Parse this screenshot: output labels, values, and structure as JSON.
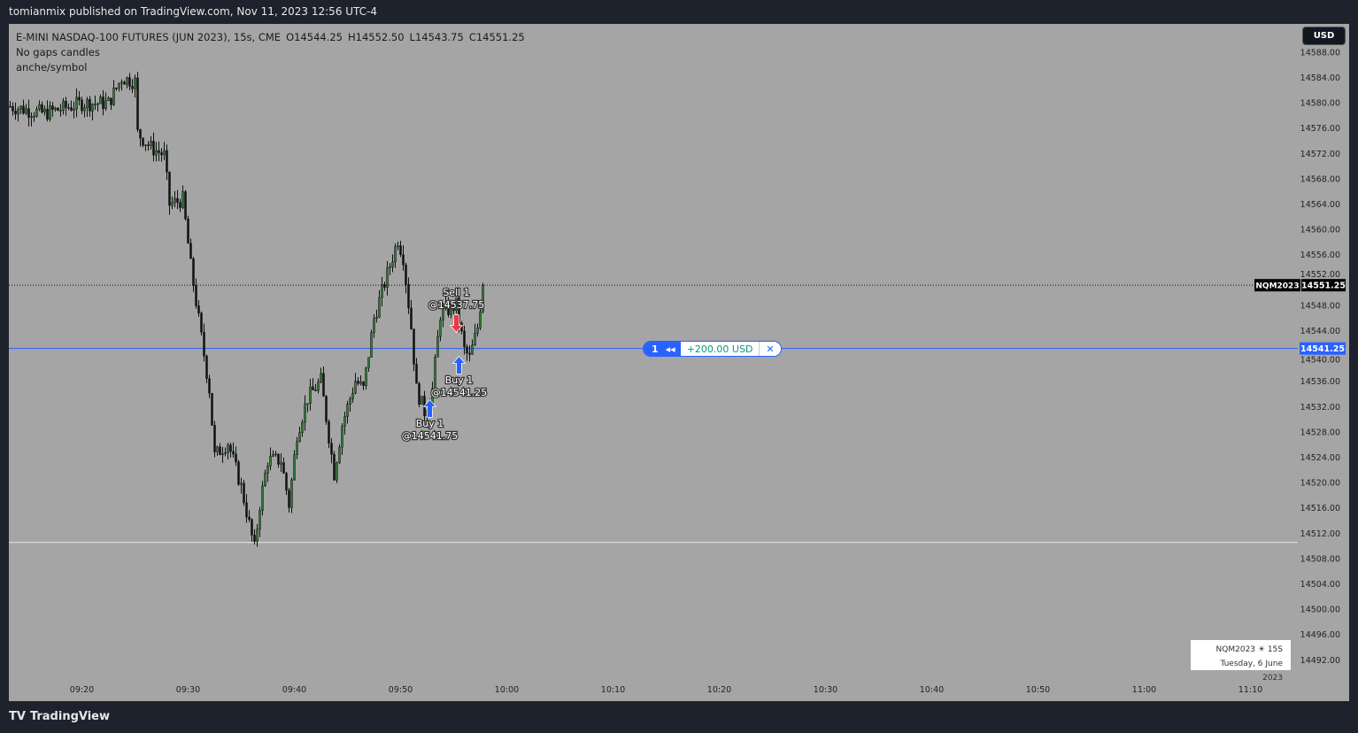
{
  "header": {
    "published": "tomianmix published on TradingView.com, Nov 11, 2023 12:56 UTC-4"
  },
  "legend": {
    "symbol": "E-MINI NASDAQ-100 FUTURES (JUN 2023), 15s, CME",
    "open": "O14544.25",
    "high": "H14552.50",
    "low": "L14543.75",
    "close": "C14551.25",
    "line2": "No gaps candles",
    "line3": "anche/symbol"
  },
  "currency_button": "USD",
  "position": {
    "qty": "1",
    "pnl": "+200.00 USD",
    "close_icon": "close-icon",
    "reverse_icon": "rewind-icon"
  },
  "info_box": {
    "symbol_line": "NQM2023 ☀ 15S",
    "date": "Tuesday, 6 June 2023"
  },
  "brand": "TradingView",
  "colors": {
    "up": "#2e7d32",
    "down": "#111111",
    "position_line": "#2962ff",
    "buy": "#2962ff",
    "sell": "#f23645",
    "pnl": "#089981"
  },
  "chart_data": {
    "type": "candlestick",
    "interval": "15s",
    "ylim": [
      14490,
      14590
    ],
    "y_ticks": [
      14588,
      14584,
      14580,
      14576,
      14572,
      14568,
      14564,
      14560,
      14556,
      14552,
      14548,
      14544,
      14540,
      14536,
      14532,
      14528,
      14524,
      14520,
      14516,
      14512,
      14508,
      14504,
      14500,
      14496,
      14492
    ],
    "x_ticks": [
      "09:20",
      "09:30",
      "09:40",
      "09:50",
      "10:00",
      "10:10",
      "10:20",
      "10:30",
      "10:40",
      "10:50",
      "11:00",
      "11:10"
    ],
    "xlim": [
      "09:13:15",
      "11:19:00"
    ],
    "close_path": [
      [
        "09:13:15",
        14579.5
      ],
      [
        "09:16:30",
        14578.4
      ],
      [
        "09:20:00",
        14580
      ],
      [
        "09:22:30",
        14580
      ],
      [
        "09:23:45",
        14584
      ],
      [
        "09:25:00",
        14583.4
      ],
      [
        "09:25:15",
        14575.3
      ],
      [
        "09:26:30",
        14573
      ],
      [
        "09:27:45",
        14571.8
      ],
      [
        "09:28:15",
        14564
      ],
      [
        "09:29:30",
        14564.8
      ],
      [
        "09:30:15",
        14554.3
      ],
      [
        "09:31:15",
        14543
      ],
      [
        "09:32:00",
        14534.8
      ],
      [
        "09:32:30",
        14524.3
      ],
      [
        "09:33:45",
        14526.4
      ],
      [
        "09:35:00",
        14519.4
      ],
      [
        "09:36:15",
        14509.6
      ],
      [
        "09:36:45",
        14516.6
      ],
      [
        "09:37:30",
        14523.6
      ],
      [
        "09:38:45",
        14523.6
      ],
      [
        "09:39:30",
        14516.6
      ],
      [
        "09:40:15",
        14527.8
      ],
      [
        "09:41:15",
        14533.4
      ],
      [
        "09:42:30",
        14536.2
      ],
      [
        "09:43:45",
        14521.5
      ],
      [
        "09:44:30",
        14529.2
      ],
      [
        "09:45:45",
        14536.2
      ],
      [
        "09:46:30",
        14534.8
      ],
      [
        "09:47:30",
        14546
      ],
      [
        "09:48:45",
        14553
      ],
      [
        "09:49:45",
        14558.5
      ],
      [
        "09:50:15",
        14555.7
      ],
      [
        "09:51:00",
        14544.6
      ],
      [
        "09:51:30",
        14534.8
      ],
      [
        "09:52:15",
        14531.3
      ],
      [
        "09:53:00",
        14534.8
      ],
      [
        "09:53:45",
        14546.7
      ],
      [
        "09:54:30",
        14547.4
      ],
      [
        "09:55:15",
        14548.1
      ],
      [
        "09:56:00",
        14541
      ],
      [
        "09:56:30",
        14539.7
      ],
      [
        "09:57:15",
        14544.6
      ],
      [
        "09:57:45",
        14551.25
      ]
    ],
    "last_price": {
      "symbol": "NQM2023",
      "value": "14551.25",
      "price": 14551.25
    },
    "position_line": {
      "value": "14541.25",
      "price": 14541.25
    },
    "horizontal_line": {
      "price": 14510.6
    },
    "trades": [
      {
        "side": "buy",
        "label": "Buy 1",
        "price_label": "@14541.75",
        "time": "09:52:45"
      },
      {
        "side": "sell",
        "label": "Sell 1",
        "price_label": "@14537.75",
        "time": "09:55:15"
      },
      {
        "side": "buy",
        "label": "Buy 1",
        "price_label": "@14541.25",
        "time": "09:55:30"
      }
    ]
  }
}
